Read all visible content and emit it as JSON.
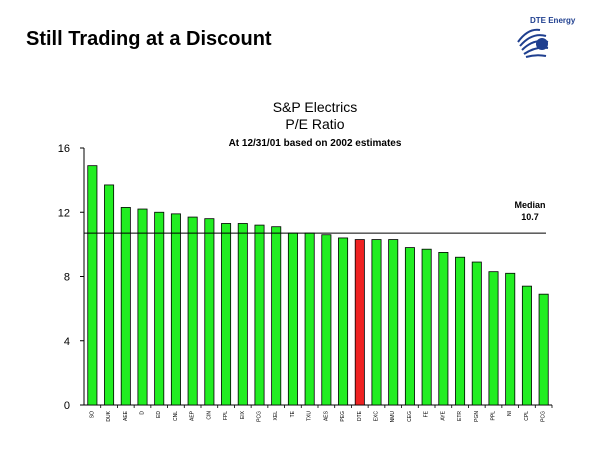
{
  "slide": {
    "title": "Still Trading at a Discount",
    "logo_text": "DTE Energy"
  },
  "chart_data": {
    "type": "bar",
    "title": "S&P Electrics",
    "subtitle": "P/E Ratio",
    "note": "At 12/31/01 based on 2002 estimates",
    "ylim": [
      0,
      16
    ],
    "yticks": [
      0,
      4,
      8,
      12,
      16
    ],
    "grid": false,
    "categories": [
      "SO",
      "DUK",
      "AEE",
      "D",
      "ED",
      "CNL",
      "AEP",
      "CIN",
      "FPL",
      "EIX",
      "PCG",
      "XEL",
      "TE",
      "TXU",
      "AES",
      "PEG",
      "DTE",
      "EXC",
      "NMU",
      "CEG",
      "FE",
      "AYE",
      "ETR",
      "PGN",
      "PPL",
      "NI",
      "CPL",
      "PCG"
    ],
    "values": [
      14.9,
      13.7,
      12.3,
      12.2,
      12.0,
      11.9,
      11.7,
      11.6,
      11.3,
      11.3,
      11.2,
      11.1,
      10.7,
      10.7,
      10.6,
      10.4,
      10.3,
      10.3,
      10.3,
      9.8,
      9.7,
      9.5,
      9.2,
      8.9,
      8.3,
      8.2,
      7.4,
      6.9
    ],
    "highlight_index": 16,
    "median": 10.7,
    "median_label": "Median",
    "median_value_label": "10.7"
  },
  "colors": {
    "bar": "#22ee22",
    "highlight": "#ee2222",
    "axis": "#000000",
    "logo": "#1f3f8f"
  }
}
